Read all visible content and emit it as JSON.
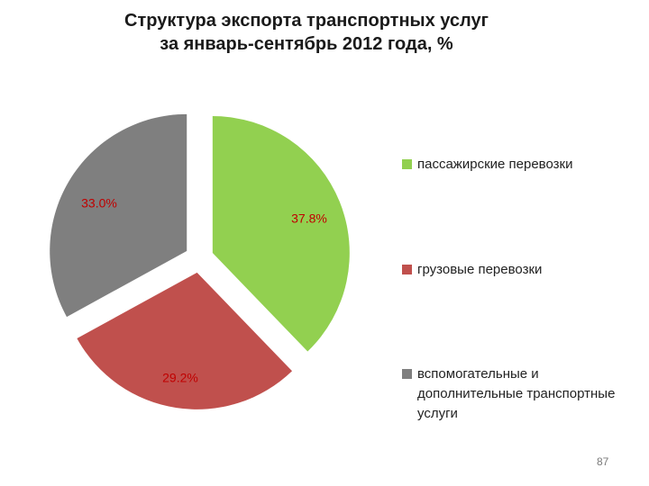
{
  "title_line1": "Структура экспорта транспортных услуг",
  "title_line2": "за январь-сентябрь  2012 года, %",
  "page_number": "87",
  "chart_data": {
    "type": "pie",
    "exploded": true,
    "slices": [
      {
        "label": "пассажирские перевозки",
        "value": 37.8,
        "display": "37.8%",
        "color": "#92d050"
      },
      {
        "label": "грузовые перевозки",
        "value": 29.2,
        "display": "29.2%",
        "color": "#c0504d"
      },
      {
        "label": "вспомогательные и дополнительные транспортные услуги",
        "value": 33.0,
        "display": "33.0%",
        "color": "#7f7f7f"
      }
    ],
    "label_color": "#c00000",
    "legend_position": "right"
  }
}
